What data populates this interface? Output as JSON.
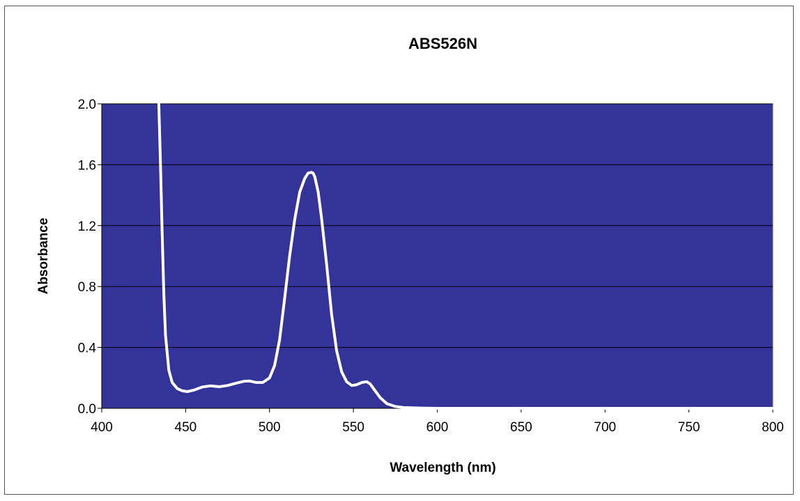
{
  "chart_data": {
    "type": "line",
    "title": "ABS526N",
    "xlabel": "Wavelength (nm)",
    "ylabel": "Absorbance",
    "xlim": [
      400,
      800
    ],
    "ylim": [
      0,
      2.0
    ],
    "x_ticks": [
      "400",
      "450",
      "500",
      "550",
      "600",
      "650",
      "700",
      "750",
      "800"
    ],
    "y_ticks": [
      "0.0",
      "0.4",
      "0.8",
      "1.2",
      "1.6",
      "2.0"
    ],
    "grid": true,
    "legend": "none",
    "colors": {
      "plot_area": "#333399",
      "line": "#ffffff",
      "gridline": "#000000"
    },
    "series": [
      {
        "x": [
          434,
          435,
          436,
          437,
          438,
          440,
          442,
          445,
          448,
          451,
          455,
          460,
          465,
          470,
          475,
          480,
          485,
          488,
          492,
          496,
          500,
          503,
          506,
          509,
          512,
          515,
          518,
          521,
          523,
          525,
          526,
          527,
          529,
          531,
          534,
          537,
          540,
          543,
          546,
          549,
          552,
          555,
          558,
          560,
          563,
          566,
          570,
          575,
          580,
          590,
          600,
          650,
          700,
          750,
          800
        ],
        "y": [
          2.0,
          1.6,
          1.15,
          0.75,
          0.48,
          0.25,
          0.17,
          0.13,
          0.115,
          0.11,
          0.12,
          0.14,
          0.148,
          0.142,
          0.15,
          0.165,
          0.178,
          0.18,
          0.17,
          0.17,
          0.2,
          0.28,
          0.45,
          0.72,
          1.0,
          1.24,
          1.42,
          1.51,
          1.545,
          1.55,
          1.545,
          1.52,
          1.42,
          1.25,
          0.95,
          0.62,
          0.38,
          0.24,
          0.175,
          0.15,
          0.155,
          0.17,
          0.175,
          0.16,
          0.115,
          0.07,
          0.03,
          0.012,
          0.005,
          0.002,
          0.0,
          0.0,
          0.0,
          0.0,
          0.0
        ]
      }
    ]
  }
}
